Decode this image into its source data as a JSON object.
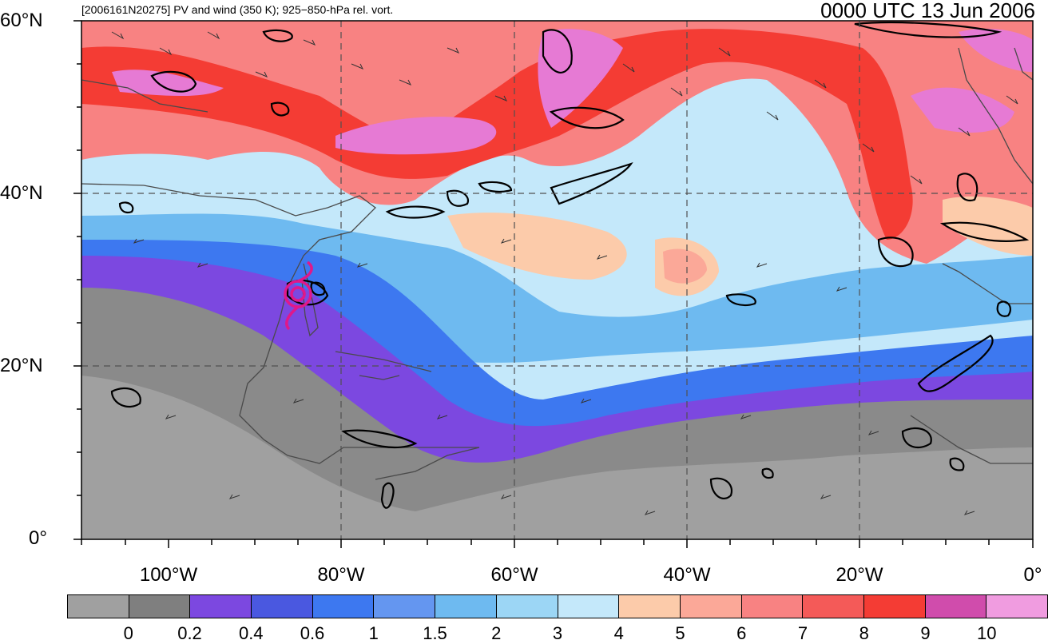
{
  "header": {
    "subtitle": "[2006161N20275] PV and wind (350 K); 925−850-hPa rel. vort.",
    "timestamp": "0000 UTC 13 Jun 2006"
  },
  "map": {
    "lat_labels": [
      "60°N",
      "40°N",
      "20°N",
      "0°"
    ],
    "lon_labels": [
      "100°W",
      "80°W",
      "60°W",
      "40°W",
      "20°W",
      "0°"
    ],
    "colors": {
      "vorticity_contours": "#000000",
      "storm_track_marker": "#e0188a",
      "gridline": "#505050",
      "coastline": "#4a4a4a"
    }
  },
  "colorbar": {
    "colors": [
      "#a0a0a0",
      "#7f7f7f",
      "#7c48e0",
      "#4a58e0",
      "#3d78f0",
      "#6496f0",
      "#6ebaf0",
      "#9cd6f5",
      "#c4e8fa",
      "#fccbaa",
      "#fba898",
      "#f88282",
      "#f45a58",
      "#f43c34",
      "#d04cac",
      "#f09ce0"
    ],
    "labels": [
      "0",
      "0.2",
      "0.4",
      "0.6",
      "1",
      "1.5",
      "2",
      "3",
      "4",
      "5",
      "6",
      "7",
      "8",
      "9",
      "10"
    ]
  }
}
